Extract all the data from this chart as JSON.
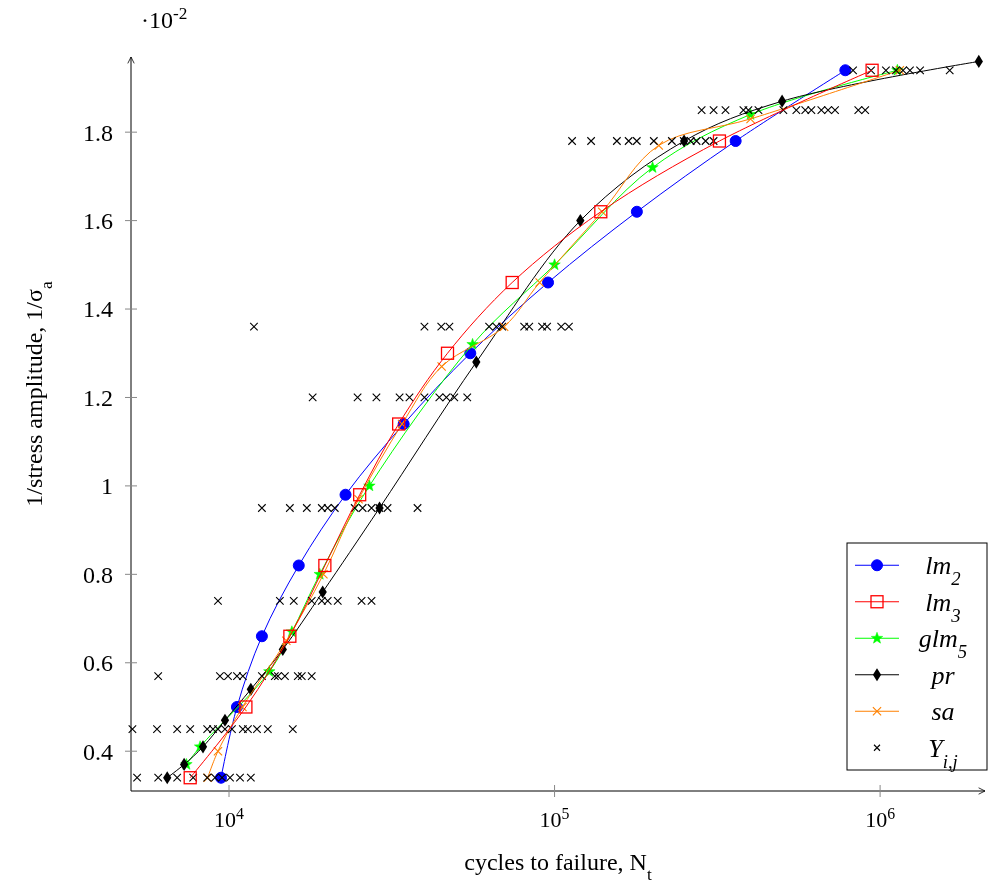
{
  "chart_data": {
    "type": "line",
    "xlabel": "cycles to failure, N$_{t}$",
    "ylabel": "1/stress amplitude, 1/σ$_{a}$",
    "annotations": [
      "·10$^{-2}$"
    ],
    "log": "x",
    "xlim": [
      5000,
      2100000
    ],
    "xticks": [
      {
        "value": 10000,
        "label": "10$^{4}$"
      },
      {
        "value": 100000,
        "label": "10$^{5}$"
      },
      {
        "value": 1000000,
        "label": "10$^{6}$"
      }
    ],
    "ylim": [
      0.31,
      1.97
    ],
    "yticks": [
      0.4,
      0.6,
      0.8,
      1,
      1.2,
      1.4,
      1.6,
      1.8
    ],
    "grid": false,
    "legend": "bottom right",
    "series": [
      {
        "name": "lm$_{2}$",
        "marker": "circle",
        "color": "#0000ff",
        "x": [
          9450,
          10580,
          12620,
          16380,
          22800,
          34400,
          55100,
          95500,
          179000,
          360000,
          782000
        ],
        "values": [
          0.34,
          0.5,
          0.66,
          0.82,
          0.98,
          1.14,
          1.3,
          1.46,
          1.62,
          1.78,
          1.94
        ]
      },
      {
        "name": "lm$_{3}$",
        "marker": "square",
        "color": "#ff0000",
        "x": [
          7600,
          11270,
          15380,
          19700,
          25200,
          33200,
          46900,
          74100,
          138700,
          321000,
          945000
        ],
        "values": [
          0.34,
          0.5,
          0.66,
          0.82,
          0.98,
          1.14,
          1.3,
          1.46,
          1.62,
          1.78,
          1.94
        ]
      },
      {
        "name": "glm$_{5}$",
        "marker": "star",
        "color": "#00ff00",
        "x": [
          7400,
          8150,
          13300,
          15600,
          19000,
          27000,
          56000,
          100000,
          200000,
          400000,
          1130000
        ],
        "values": [
          0.37,
          0.41,
          0.58,
          0.67,
          0.8,
          1.0,
          1.32,
          1.5,
          1.72,
          1.84,
          1.94
        ]
      },
      {
        "name": "pr",
        "marker": "diamond",
        "color": "#000000",
        "x": [
          6460,
          7280,
          8320,
          9720,
          11670,
          14630,
          19400,
          29000,
          57500,
          120000,
          250000,
          500000,
          2010000
        ],
        "values": [
          0.34,
          0.37,
          0.41,
          0.47,
          0.54,
          0.63,
          0.76,
          0.95,
          1.28,
          1.6,
          1.78,
          1.87,
          1.96
        ]
      },
      {
        "name": "sa",
        "marker": "cross",
        "color": "#ff8000",
        "x": [
          8600,
          9250,
          11000,
          15000,
          19500,
          25000,
          34000,
          45000,
          70000,
          90000,
          140000,
          209000,
          400000,
          1150000
        ],
        "values": [
          0.34,
          0.4,
          0.5,
          0.65,
          0.8,
          0.97,
          1.14,
          1.27,
          1.36,
          1.46,
          1.62,
          1.77,
          1.83,
          1.94
        ]
      },
      {
        "name": "Y$_{i,j}$",
        "type": "scatter",
        "marker": "cross",
        "color": "#000000",
        "x": [
          5220,
          6060,
          6930,
          7760,
          8570,
          9060,
          9520,
          10070,
          10810,
          11670,
          5050,
          6010,
          6930,
          7600,
          8570,
          8930,
          9250,
          9720,
          10210,
          11030,
          11430,
          12190,
          13160,
          15700,
          6060,
          9380,
          9930,
          10580,
          11030,
          12620,
          13830,
          14130,
          14850,
          16270,
          16730,
          17950,
          9250,
          14330,
          15810,
          17950,
          19280,
          20100,
          21580,
          25540,
          27400,
          12620,
          15380,
          17340,
          19280,
          20100,
          21130,
          24330,
          25730,
          27400,
          28970,
          30690,
          37940,
          18070,
          24830,
          28370,
          33420,
          35840,
          39840,
          44270,
          46530,
          49210,
          53930,
          11930,
          39840,
          44870,
          47540,
          62950,
          66220,
          69040,
          80660,
          83620,
          91560,
          94880,
          104800,
          110700,
          113200,
          129500,
          155400,
          168900,
          178900,
          201800,
          229300,
          249400,
          261900,
          273100,
          291000,
          308000,
          283000,
          308000,
          335000,
          380300,
          394000,
          423000,
          504500,
          553000,
          589000,
          615000,
          660000,
          692000,
          727000,
          857000,
          900000,
          826000,
          938000,
          1042000,
          1119000,
          1176000,
          1235000,
          1327000,
          1636000
        ],
        "values": [
          0.34,
          0.34,
          0.34,
          0.34,
          0.34,
          0.34,
          0.34,
          0.34,
          0.34,
          0.34,
          0.45,
          0.45,
          0.45,
          0.45,
          0.45,
          0.45,
          0.45,
          0.45,
          0.45,
          0.45,
          0.45,
          0.45,
          0.45,
          0.45,
          0.57,
          0.57,
          0.57,
          0.57,
          0.57,
          0.57,
          0.57,
          0.57,
          0.57,
          0.57,
          0.57,
          0.57,
          0.74,
          0.74,
          0.74,
          0.74,
          0.74,
          0.74,
          0.74,
          0.74,
          0.74,
          0.95,
          0.95,
          0.95,
          0.95,
          0.95,
          0.95,
          0.95,
          0.95,
          0.95,
          0.95,
          0.95,
          0.95,
          1.2,
          1.2,
          1.2,
          1.2,
          1.2,
          1.2,
          1.2,
          1.2,
          1.2,
          1.2,
          1.36,
          1.36,
          1.36,
          1.36,
          1.36,
          1.36,
          1.36,
          1.36,
          1.36,
          1.36,
          1.36,
          1.36,
          1.36,
          1.78,
          1.78,
          1.78,
          1.78,
          1.78,
          1.78,
          1.78,
          1.78,
          1.78,
          1.78,
          1.78,
          1.78,
          1.85,
          1.85,
          1.85,
          1.85,
          1.85,
          1.85,
          1.85,
          1.85,
          1.85,
          1.85,
          1.85,
          1.85,
          1.85,
          1.85,
          1.85,
          1.94,
          1.94,
          1.94,
          1.94,
          1.94,
          1.94,
          1.94,
          1.94
        ]
      }
    ]
  }
}
